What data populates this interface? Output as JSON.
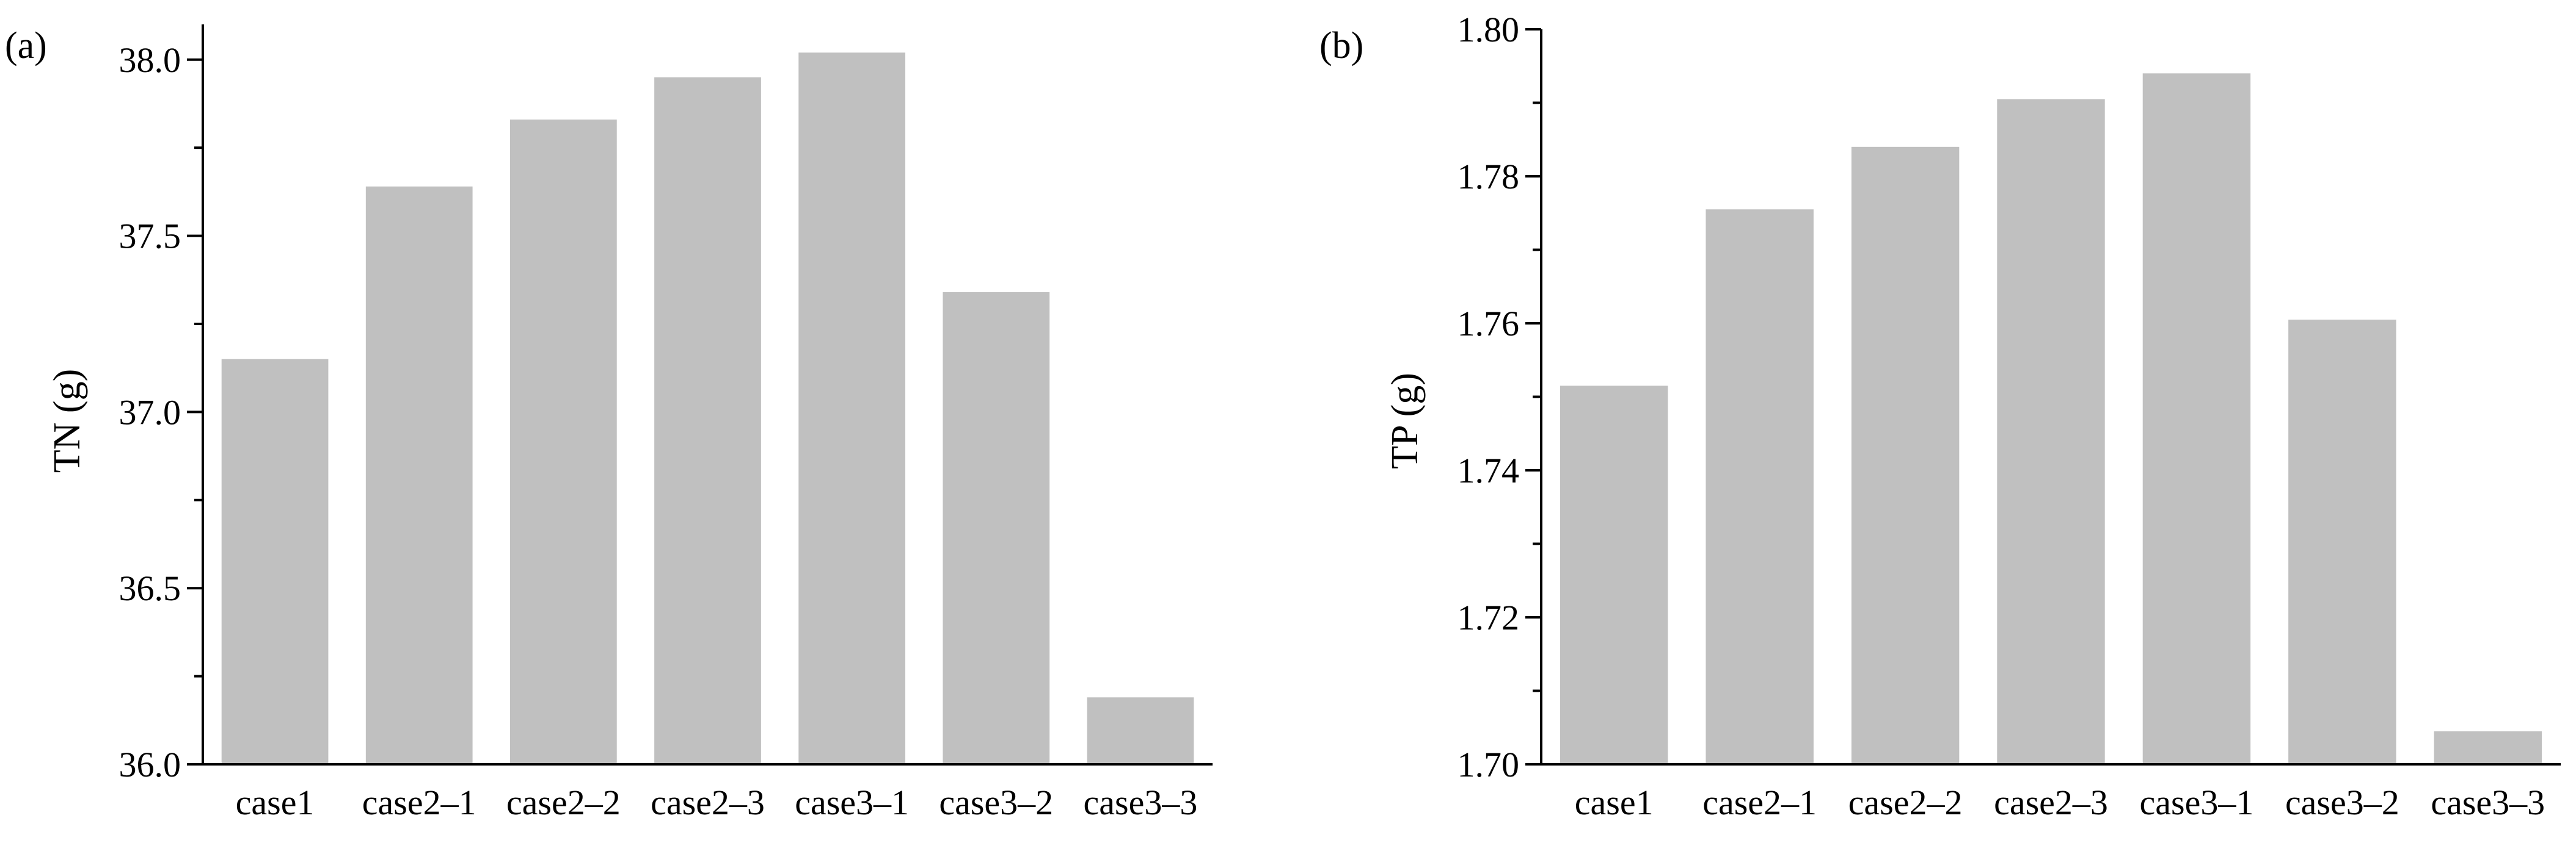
{
  "chart_data": [
    {
      "type": "bar",
      "panel_label": "(a)",
      "ylabel": "TN (g)",
      "categories": [
        "case1",
        "case2–1",
        "case2–2",
        "case2–3",
        "case3–1",
        "case3–2",
        "case3–3"
      ],
      "values": [
        37.15,
        37.64,
        37.83,
        37.95,
        38.02,
        37.34,
        36.19
      ],
      "ylim": [
        36.0,
        38.1
      ],
      "yticks": [
        "36.0",
        "36.5",
        "37.0",
        "37.5",
        "38.0"
      ],
      "bar_color": "#c0c0c0",
      "grid": false
    },
    {
      "type": "bar",
      "panel_label": "(b)",
      "ylabel": "TP (g)",
      "categories": [
        "case1",
        "case2–1",
        "case2–2",
        "case2–3",
        "case3–1",
        "case3–2",
        "case3–3"
      ],
      "values": [
        1.7515,
        1.7755,
        1.784,
        1.7905,
        1.794,
        1.7605,
        1.7045
      ],
      "ylim": [
        1.7,
        1.8
      ],
      "yticks": [
        "1.70",
        "1.72",
        "1.74",
        "1.76",
        "1.78",
        "1.80"
      ],
      "bar_color": "#c0c0c0",
      "grid": false
    }
  ]
}
